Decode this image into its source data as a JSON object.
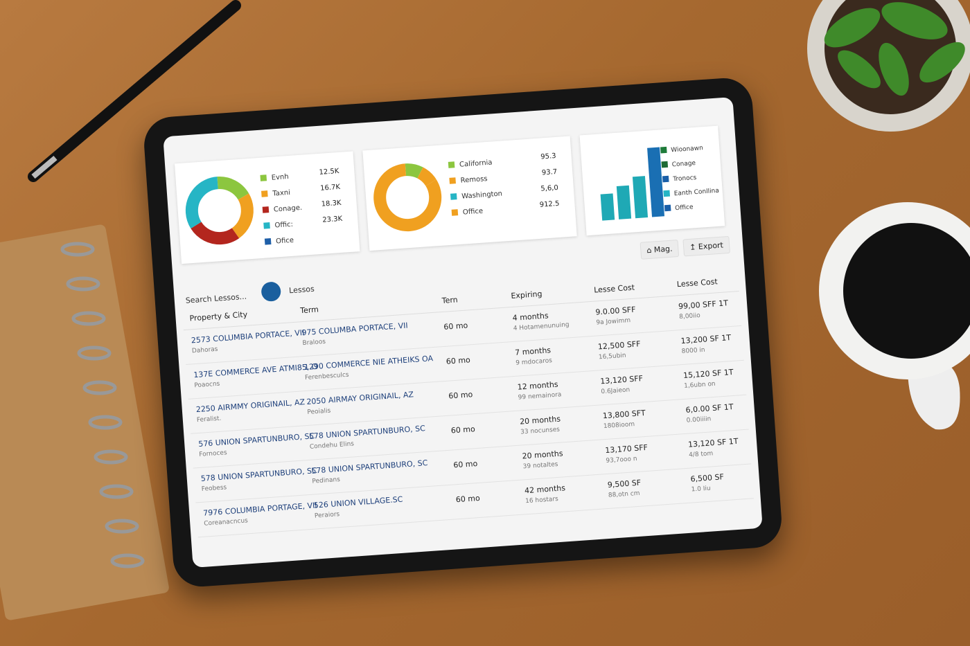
{
  "chart_data": [
    {
      "type": "pie",
      "categories": [
        "Evnh",
        "Taxni",
        "Conage.",
        "Offic:",
        "Ofice"
      ],
      "values": [
        12500,
        16700,
        18300,
        23300,
        null
      ],
      "value_labels": [
        "12.5K",
        "16.7K",
        "18.3K",
        "23.3K",
        null
      ],
      "colors": [
        "#8cc63f",
        "#f0a020",
        "#b3261e",
        "#26b5c5",
        "#1f5fa8"
      ]
    },
    {
      "type": "pie",
      "categories": [
        "California",
        "Remoss",
        "Washington",
        "Office"
      ],
      "values": [
        95.3,
        93.7,
        null,
        912.5
      ],
      "value_labels": [
        null,
        null,
        "5,6,0",
        null
      ],
      "colors": [
        "#8cc63f",
        "#f0a020",
        "#26b5c5",
        "#f0a020"
      ]
    },
    {
      "type": "bar",
      "categories": [
        null,
        null,
        null,
        null
      ],
      "values": [
        38,
        48,
        60,
        100
      ],
      "colors": [
        "#1fa9b5",
        "#1fa9b5",
        "#1fa9b5",
        "#1a6fb3"
      ],
      "legend": [
        "Wioonawn",
        "Conage",
        "Tronocs",
        "Eanth Conllina",
        "Office"
      ],
      "legend_colors": [
        "#1e7b3a",
        "#1e6b35",
        "#1a5fa8",
        "#26b5c5",
        "#1a5fa8"
      ]
    }
  ],
  "toolbar": {
    "buttons": [
      "Mag.",
      "Export"
    ],
    "search": "Search Lessos...",
    "tab": "Lessos"
  },
  "table": {
    "headers": [
      "Property & City",
      "Term",
      "Tern",
      "Expiring",
      "Lesse Cost",
      "Lesse Cost"
    ],
    "rows": [
      [
        [
          "2573 COLUMBIA PORTACE, VII",
          "Dahoras"
        ],
        [
          "975 COLUMBA PORTACE, VII",
          "Braloos"
        ],
        "60 mo",
        [
          "4 months",
          "4 Hotamenunuing"
        ],
        [
          "9.0.00 SFF",
          "9a Jowimm"
        ],
        [
          "99,00 SFF 1T",
          "8,00iio"
        ]
      ],
      [
        [
          "137E COMMERCE AVE ATMI85, O",
          "Poaocns"
        ],
        [
          "1290 COMMERCE NIE ATHEIKS OA",
          "Ferenbesculcs"
        ],
        "60 mo",
        [
          "7 months",
          "9 mdocaros"
        ],
        [
          "12,500 SFF",
          "16,5ubin"
        ],
        [
          "13,200 SF 1T",
          "8000 in"
        ]
      ],
      [
        [
          "2250 AIRMMY ORIGINAIL, AZ",
          "Feralist."
        ],
        [
          "2050 AIRMAY ORIGINAIL, AZ",
          "Peoialis"
        ],
        "60 mo",
        [
          "12 months",
          "99 nemainora"
        ],
        [
          "13,120 SFF",
          "0.6Jaieon"
        ],
        [
          "15,120 SF 1T",
          "1,6ubn on"
        ]
      ],
      [
        [
          "576 UNION SPARTUNBURO, SC",
          "Fornoces"
        ],
        [
          "578 UNION SPARTUNBURO, SC",
          "Condehu Elins"
        ],
        "60 mo",
        [
          "20 months",
          "33 nocunses"
        ],
        [
          "13,800 SFT",
          "1808ioom"
        ],
        [
          "6,0.00 SF 1T",
          "0.00iiiin"
        ]
      ],
      [
        [
          "578 UNION SPARTUNBURO, SC",
          "Feobess"
        ],
        [
          "578 UNION SPARTUNBURO, SC",
          "Pedinans"
        ],
        "60 mo",
        [
          "20 months",
          "39 notaltes"
        ],
        [
          "13,170 SFF",
          "93,7ooo n"
        ],
        [
          "13,120 SF 1T",
          "4/8 tom"
        ]
      ],
      [
        [
          "7976 COLUMBIA PORTAGE, VII",
          "Coreanacncus"
        ],
        [
          "526 UNION VILLAGE.SC",
          "Peraiors"
        ],
        "60 mo",
        [
          "42 months",
          "16 hostars"
        ],
        [
          "9,500 SF",
          "88,otn cm"
        ],
        [
          "6,500 SF",
          "1.0 Iiu"
        ]
      ]
    ]
  }
}
